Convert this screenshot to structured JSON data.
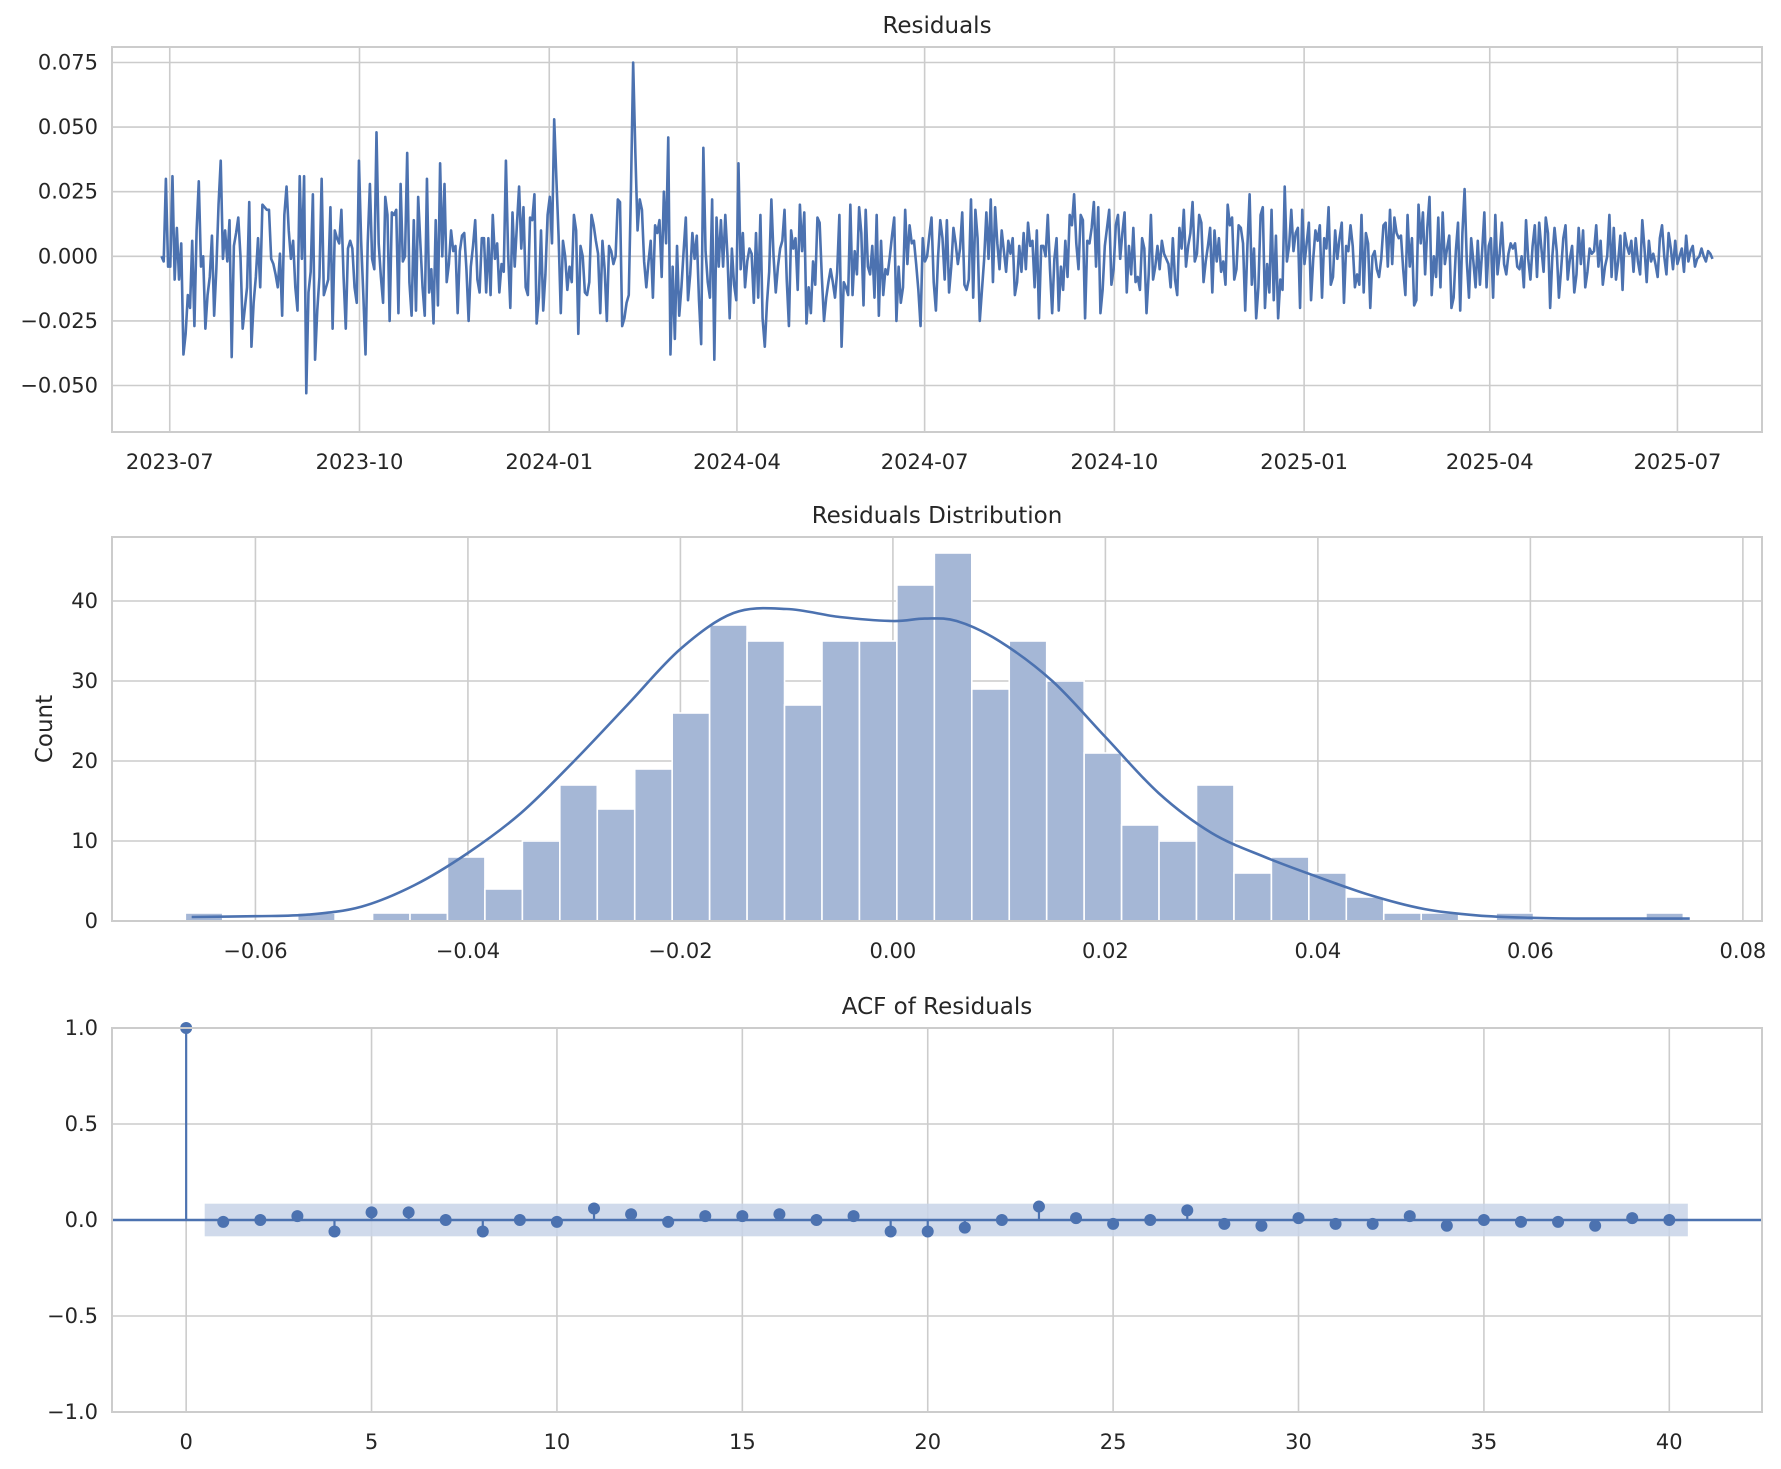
{
  "chart_data": [
    {
      "type": "line",
      "title": "Residuals",
      "xlabel": "",
      "ylabel": "",
      "x_start": "2023-06-27",
      "x_end": "2025-07-18",
      "xlim": [
        "2023-06-03",
        "2025-08-11"
      ],
      "ylim": [
        -0.068,
        0.081
      ],
      "x_ticks": [
        "2023-07",
        "2023-10",
        "2024-01",
        "2024-04",
        "2024-07",
        "2024-10",
        "2025-01",
        "2025-04",
        "2025-07"
      ],
      "y_ticks": [
        -0.05,
        -0.025,
        0.0,
        0.025,
        0.05,
        0.075
      ],
      "y_tick_labels": [
        "−0.050",
        "−0.025",
        "0.000",
        "0.025",
        "0.050",
        "0.075"
      ],
      "values": [
        0.0,
        -0.002,
        0.03,
        -0.004,
        -0.004,
        0.031,
        -0.009,
        0.011,
        -0.009,
        0.005,
        -0.038,
        -0.03,
        -0.015,
        -0.02,
        0.006,
        -0.027,
        0.01,
        0.029,
        -0.004,
        0.0,
        -0.028,
        -0.015,
        -0.008,
        0.008,
        -0.023,
        -0.005,
        0.02,
        0.037,
        -0.001,
        0.01,
        -0.002,
        0.014,
        -0.039,
        0.004,
        0.009,
        0.015,
        0.0,
        -0.028,
        -0.02,
        -0.012,
        0.021,
        -0.035,
        -0.018,
        -0.008,
        0.007,
        -0.012,
        0.02,
        0.019,
        0.018,
        0.018,
        -0.001,
        -0.003,
        -0.007,
        -0.012,
        0.001,
        -0.023,
        0.016,
        0.027,
        0.01,
        -0.001,
        0.006,
        -0.012,
        -0.021,
        0.031,
        -0.001,
        0.031,
        -0.053,
        -0.014,
        -0.006,
        0.024,
        -0.04,
        -0.021,
        -0.008,
        0.03,
        -0.015,
        -0.012,
        -0.009,
        0.019,
        -0.028,
        0.01,
        0.007,
        0.005,
        0.018,
        -0.008,
        -0.028,
        0.003,
        0.006,
        0.003,
        -0.012,
        -0.018,
        0.037,
        0.006,
        -0.015,
        -0.038,
        0.005,
        0.028,
        -0.001,
        -0.005,
        0.048,
        0.005,
        -0.008,
        -0.018,
        0.023,
        0.016,
        -0.025,
        0.017,
        0.016,
        0.018,
        -0.022,
        0.028,
        -0.002,
        0.0,
        0.04,
        -0.01,
        -0.023,
        0.014,
        -0.021,
        0.023,
        0.005,
        -0.012,
        -0.023,
        0.03,
        -0.014,
        -0.005,
        -0.026,
        0.014,
        -0.019,
        0.036,
        0.0,
        0.028,
        -0.01,
        -0.003,
        0.01,
        0.002,
        0.004,
        -0.022,
        0.002,
        0.008,
        0.009,
        -0.005,
        -0.025,
        -0.004,
        0.004,
        0.014,
        -0.009,
        -0.014,
        0.007,
        0.007,
        -0.014,
        0.007,
        -0.015,
        0.016,
        -0.001,
        0.005,
        -0.014,
        -0.003,
        -0.006,
        0.037,
        0.001,
        -0.02,
        0.017,
        -0.004,
        0.012,
        0.027,
        0.003,
        0.019,
        -0.012,
        -0.015,
        0.015,
        0.014,
        0.024,
        -0.026,
        -0.016,
        0.01,
        -0.021,
        -0.007,
        0.016,
        0.023,
        0.005,
        0.053,
        0.03,
        0.008,
        -0.022,
        0.006,
        0.0,
        -0.013,
        -0.004,
        -0.01,
        0.016,
        0.01,
        -0.03,
        0.004,
        0.0,
        -0.014,
        -0.015,
        -0.01,
        0.016,
        0.012,
        0.006,
        0.001,
        -0.022,
        0.006,
        -0.005,
        -0.025,
        0.004,
        0.002,
        -0.003,
        0.0,
        0.022,
        0.021,
        -0.027,
        -0.024,
        -0.018,
        -0.015,
        0.026,
        0.075,
        0.04,
        0.01,
        0.022,
        0.018,
        -0.002,
        -0.012,
        -0.002,
        0.006,
        -0.016,
        0.012,
        0.009,
        0.014,
        -0.008,
        0.025,
        0.005,
        0.046,
        -0.038,
        -0.004,
        -0.032,
        0.004,
        -0.023,
        -0.012,
        0.002,
        0.015,
        -0.017,
        -0.007,
        0.009,
        -0.001,
        0.008,
        -0.017,
        -0.034,
        0.042,
        0.002,
        -0.01,
        -0.016,
        0.022,
        -0.04,
        0.015,
        -0.004,
        0.014,
        -0.004,
        0.016,
        0.0,
        -0.024,
        0.003,
        -0.011,
        -0.017,
        0.036,
        -0.005,
        0.009,
        -0.012,
        -0.002,
        0.003,
        0.001,
        -0.018,
        0.009,
        -0.016,
        0.016,
        -0.024,
        -0.035,
        -0.018,
        -0.006,
        0.022,
        0.0,
        -0.014,
        -0.004,
        0.003,
        0.006,
        0.018,
        -0.009,
        -0.027,
        0.01,
        0.003,
        0.007,
        -0.013,
        0.02,
        0.002,
        0.017,
        -0.026,
        -0.012,
        -0.022,
        -0.002,
        -0.011,
        0.015,
        0.013,
        -0.008,
        -0.025,
        -0.016,
        -0.01,
        -0.005,
        -0.01,
        -0.016,
        -0.006,
        0.016,
        -0.035,
        -0.01,
        -0.012,
        -0.015,
        0.02,
        -0.015,
        0.002,
        -0.007,
        0.019,
        0.009,
        -0.019,
        0.018,
        -0.004,
        -0.007,
        0.004,
        -0.016,
        0.016,
        -0.023,
        0.006,
        -0.015,
        -0.005,
        -0.007,
        0.0,
        0.008,
        0.015,
        -0.025,
        -0.004,
        -0.018,
        -0.012,
        0.018,
        -0.003,
        0.012,
        0.005,
        0.006,
        -0.003,
        -0.013,
        -0.027,
        0.007,
        -0.002,
        0.0,
        0.008,
        0.015,
        -0.01,
        -0.021,
        0.0,
        0.014,
        0.007,
        -0.009,
        0.014,
        -0.014,
        -0.004,
        0.011,
        0.005,
        -0.003,
        0.003,
        0.017,
        -0.011,
        -0.013,
        -0.009,
        0.022,
        -0.016,
        0.018,
        0.007,
        -0.025,
        -0.013,
        -0.001,
        0.017,
        -0.001,
        0.022,
        -0.01,
        0.019,
        0.005,
        -0.005,
        0.01,
        0.002,
        -0.006,
        0.006,
        0.001,
        0.007,
        -0.015,
        -0.01,
        0.004,
        -0.006,
        0.009,
        -0.005,
        0.013,
        0.004,
        0.006,
        -0.012,
        0.01,
        -0.024,
        0.004,
        0.004,
        0.0,
        0.016,
        -0.005,
        -0.022,
        -0.001,
        0.007,
        -0.021,
        -0.004,
        -0.013,
        0.006,
        -0.008,
        0.016,
        0.012,
        0.024,
        0.005,
        -0.005,
        0.016,
        0.014,
        -0.024,
        0.006,
        0.005,
        0.011,
        0.021,
        -0.004,
        0.019,
        -0.022,
        -0.013,
        0.004,
        0.011,
        0.018,
        -0.011,
        -0.005,
        0.012,
        0.016,
        -0.001,
        0.009,
        0.017,
        -0.014,
        0.004,
        -0.007,
        0.011,
        -0.01,
        -0.008,
        -0.013,
        0.007,
        0.003,
        -0.022,
        -0.007,
        0.016,
        -0.009,
        -0.004,
        0.004,
        -0.005,
        0.006,
        0.001,
        -0.001,
        -0.003,
        -0.012,
        0.007,
        -0.009,
        -0.015,
        0.011,
        0.003,
        0.018,
        -0.004,
        0.004,
        0.009,
        0.021,
        -0.002,
        0.001,
        0.016,
        0.013,
        -0.01,
        -0.002,
        0.004,
        0.011,
        -0.014,
        0.01,
        -0.002,
        0.007,
        -0.006,
        -0.002,
        -0.011,
        0.02,
        0.012,
        0.015,
        -0.009,
        -0.005,
        0.012,
        0.011,
        0.005,
        -0.021,
        0.004,
        0.024,
        -0.011,
        0.003,
        -0.024,
        -0.012,
        0.016,
        0.019,
        -0.02,
        -0.003,
        -0.014,
        0.018,
        -0.017,
        0.008,
        -0.024,
        -0.009,
        -0.013,
        0.027,
        -0.002,
        0.004,
        0.018,
        0.002,
        0.009,
        0.011,
        -0.02,
        0.018,
        -0.003,
        0.005,
        0.013,
        -0.017,
        -0.001,
        0.01,
        0.006,
        0.012,
        -0.016,
        0.007,
        0.003,
        0.019,
        -0.011,
        -0.008,
        0.01,
        -0.001,
        0.007,
        0.013,
        -0.018,
        0.004,
        0.002,
        0.012,
        0.004,
        -0.012,
        -0.007,
        -0.011,
        0.016,
        -0.014,
        0.009,
        0.005,
        -0.02,
        0.0,
        0.002,
        -0.005,
        -0.008,
        -0.001,
        0.012,
        0.013,
        -0.004,
        0.018,
        -0.003,
        0.015,
        0.009,
        0.007,
        0.008,
        -0.005,
        -0.015,
        0.016,
        -0.004,
        0.007,
        -0.019,
        -0.017,
        0.02,
        0.005,
        0.017,
        -0.007,
        0.011,
        0.023,
        -0.015,
        0.0,
        -0.008,
        0.015,
        -0.012,
        0.017,
        -0.003,
        0.003,
        0.008,
        -0.02,
        -0.016,
        0.002,
        0.013,
        -0.021,
        0.009,
        0.026,
        -0.002,
        -0.016,
        0.007,
        -0.002,
        -0.012,
        0.006,
        -0.011,
        0.002,
        0.017,
        -0.012,
        0.004,
        0.007,
        -0.016,
        0.016,
        -0.007,
        0.001,
        0.013,
        -0.003,
        -0.007,
        0.001,
        0.005,
        0.003,
        0.005,
        -0.004,
        -0.005,
        0.0,
        -0.012,
        0.014,
        -0.001,
        -0.009,
        0.004,
        0.012,
        -0.008,
        0.013,
        0.003,
        -0.006,
        0.015,
        0.009,
        -0.02,
        0.0,
        0.011,
        0.002,
        -0.016,
        -0.005,
        0.007,
        0.012,
        -0.009,
        -0.001,
        0.004,
        -0.014,
        -0.007,
        0.011,
        -0.003,
        0.01,
        -0.012,
        -0.006,
        0.003,
        0.001,
        0.002,
        0.012,
        -0.004,
        0.006,
        -0.011,
        -0.004,
        0.0,
        0.016,
        -0.008,
        0.011,
        -0.009,
        -0.002,
        0.008,
        -0.013,
        0.009,
        0.004,
        0.001,
        0.006,
        -0.006,
        0.007,
        -0.002,
        -0.007,
        0.014,
        0.003,
        -0.01,
        0.006,
        -0.002,
        0.001,
        -0.003,
        -0.008,
        0.007,
        0.012,
        0.0,
        -0.007,
        0.009,
        0.003,
        -0.005,
        0.006,
        -0.003,
        0.0,
        0.003,
        -0.006,
        0.008,
        -0.002,
        0.002,
        0.004,
        -0.004,
        -0.001,
        0.0,
        0.003,
        0.0,
        -0.002,
        0.002,
        0.001,
        -0.001
      ]
    },
    {
      "type": "bar",
      "title": "Residuals Distribution",
      "xlabel": "",
      "ylabel": "Count",
      "xlim": [
        -0.0735,
        0.0818
      ],
      "ylim": [
        0,
        48
      ],
      "x_ticks": [
        -0.06,
        -0.04,
        -0.02,
        0.0,
        0.02,
        0.04,
        0.06,
        0.08
      ],
      "x_tick_labels": [
        "−0.06",
        "−0.04",
        "−0.02",
        "0.00",
        "0.02",
        "0.04",
        "0.06",
        "0.08"
      ],
      "y_ticks": [
        0,
        10,
        20,
        30,
        40
      ],
      "bin_start": -0.0666,
      "bin_width": 0.003525,
      "counts": [
        1,
        0,
        0,
        1,
        0,
        1,
        1,
        8,
        4,
        10,
        17,
        14,
        19,
        26,
        37,
        35,
        27,
        35,
        35,
        42,
        46,
        29,
        35,
        30,
        21,
        12,
        10,
        17,
        6,
        8,
        6,
        3,
        1,
        1,
        0,
        1,
        0,
        0,
        0,
        1
      ],
      "kde_x": [
        -0.066,
        -0.06,
        -0.055,
        -0.05,
        -0.045,
        -0.04,
        -0.035,
        -0.03,
        -0.025,
        -0.02,
        -0.015,
        -0.01,
        -0.005,
        0.0,
        0.003,
        0.006,
        0.01,
        0.015,
        0.02,
        0.025,
        0.03,
        0.035,
        0.04,
        0.045,
        0.05,
        0.055,
        0.06,
        0.065,
        0.07,
        0.075
      ],
      "kde_y": [
        0.5,
        0.6,
        0.8,
        1.8,
        4.5,
        8.5,
        13.5,
        20,
        27,
        34,
        38.5,
        39,
        38,
        37.5,
        37.8,
        37.5,
        35,
        30,
        23,
        16,
        11,
        8,
        5.5,
        3.2,
        1.5,
        0.7,
        0.4,
        0.3,
        0.3,
        0.3
      ]
    },
    {
      "type": "scatter",
      "title": "ACF of Residuals",
      "xlabel": "",
      "ylabel": "",
      "xlim": [
        -2.0,
        42.5
      ],
      "ylim": [
        -1.0,
        1.0
      ],
      "x_ticks": [
        0,
        5,
        10,
        15,
        20,
        25,
        30,
        35,
        40
      ],
      "y_ticks": [
        -1.0,
        -0.5,
        0.0,
        0.5,
        1.0
      ],
      "y_tick_labels": [
        "−1.0",
        "−0.5",
        "0.0",
        "0.5",
        "1.0"
      ],
      "lags": [
        0,
        1,
        2,
        3,
        4,
        5,
        6,
        7,
        8,
        9,
        10,
        11,
        12,
        13,
        14,
        15,
        16,
        17,
        18,
        19,
        20,
        21,
        22,
        23,
        24,
        25,
        26,
        27,
        28,
        29,
        30,
        31,
        32,
        33,
        34,
        35,
        36,
        37,
        38,
        39,
        40
      ],
      "acf": [
        1.0,
        -0.01,
        0.0,
        0.02,
        -0.06,
        0.04,
        0.04,
        0.0,
        -0.06,
        0.0,
        -0.01,
        0.06,
        0.03,
        -0.01,
        0.02,
        0.02,
        0.03,
        0.0,
        0.02,
        -0.06,
        -0.06,
        -0.04,
        0.0,
        0.07,
        0.01,
        -0.02,
        0.0,
        0.05,
        -0.02,
        -0.03,
        0.01,
        -0.02,
        -0.02,
        0.02,
        -0.03,
        0.0,
        -0.01,
        -0.01,
        -0.03,
        0.01,
        0.0
      ],
      "confidence_band": [
        -0.085,
        0.085
      ],
      "band_x": [
        0.5,
        40.5
      ]
    }
  ],
  "colors": {
    "line": "#4c72b0",
    "hist_fill": "#a5b7d6",
    "band_fill": "#c8d3e8",
    "grid": "#cccccc",
    "text": "#262626"
  }
}
